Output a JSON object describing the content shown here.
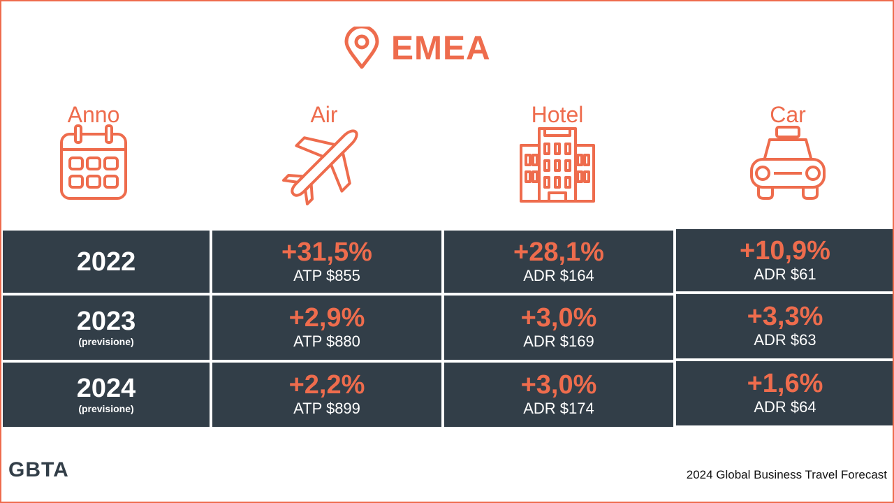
{
  "title": "EMEA",
  "columns": [
    {
      "label": "Anno",
      "icon": "calendar-icon"
    },
    {
      "label": "Air",
      "icon": "airplane-icon"
    },
    {
      "label": "Hotel",
      "icon": "hotel-building-icon"
    },
    {
      "label": "Car",
      "icon": "taxi-car-icon"
    }
  ],
  "rows": [
    {
      "year": "2022",
      "sub": "",
      "air": {
        "pct": "+31,5%",
        "metric": "ATP $855"
      },
      "hotel": {
        "pct": "+28,1%",
        "metric": "ADR $164"
      },
      "car": {
        "pct": "+10,9%",
        "metric": "ADR $61"
      }
    },
    {
      "year": "2023",
      "sub": "(previsione)",
      "air": {
        "pct": "+2,9%",
        "metric": "ATP $880"
      },
      "hotel": {
        "pct": "+3,0%",
        "metric": "ADR $169"
      },
      "car": {
        "pct": "+3,3%",
        "metric": "ADR $63"
      }
    },
    {
      "year": "2024",
      "sub": "(previsione)",
      "air": {
        "pct": "+2,2%",
        "metric": "ATP $899"
      },
      "hotel": {
        "pct": "+3,0%",
        "metric": "ADR $174"
      },
      "car": {
        "pct": "+1,6%",
        "metric": "ADR $64"
      }
    }
  ],
  "logo": "GBTA",
  "footer": "2024 Global Business Travel Forecast",
  "colors": {
    "accent": "#ee6c4d",
    "cell_bg": "#323e48",
    "text_light": "#ffffff"
  }
}
